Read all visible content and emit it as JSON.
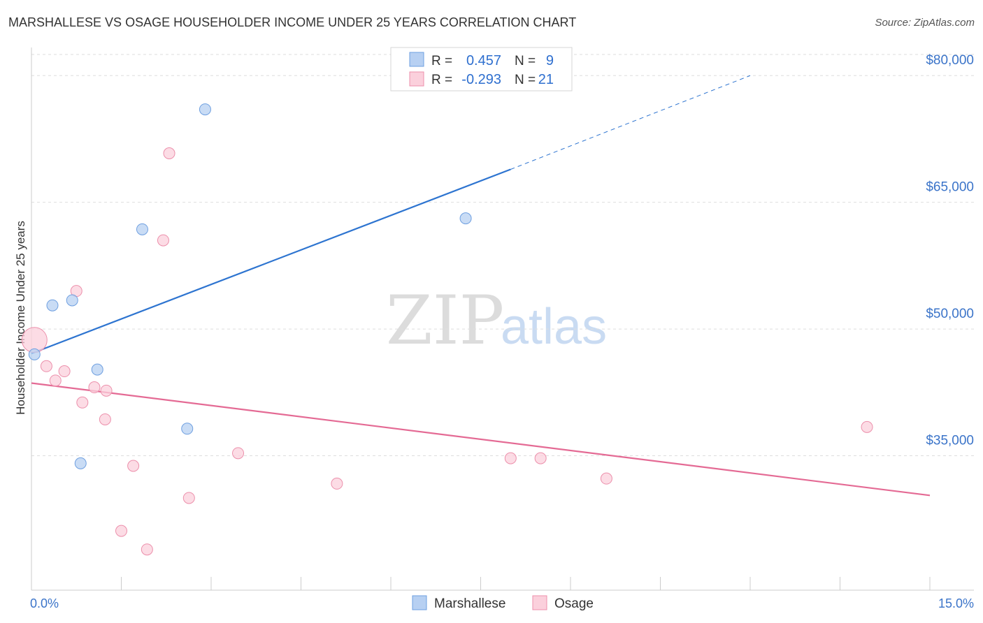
{
  "title": "MARSHALLESE VS OSAGE HOUSEHOLDER INCOME UNDER 25 YEARS CORRELATION CHART",
  "source": "Source: ZipAtlas.com",
  "watermark": {
    "zip": "ZIP",
    "atlas": "atlas"
  },
  "colors": {
    "marshallese_fill": "#b7d0f2",
    "marshallese_stroke": "#6e9fe0",
    "marshallese_line": "#2d74d0",
    "osage_fill": "#fbd0dc",
    "osage_stroke": "#ec8fab",
    "osage_line": "#e46a94",
    "grid": "#dedede",
    "tick_label": "#3b74c9"
  },
  "legend": {
    "rows": [
      {
        "r_label": "R =",
        "r_value": "0.457",
        "n_label": "N =",
        "n_value": "9"
      },
      {
        "r_label": "R =",
        "r_value": "-0.293",
        "n_label": "N =",
        "n_value": "21"
      }
    ]
  },
  "bottom_legend": [
    "Marshallese",
    "Osage"
  ],
  "chart_data": {
    "type": "scatter",
    "title": "MARSHALLESE VS OSAGE HOUSEHOLDER INCOME UNDER 25 YEARS CORRELATION CHART",
    "xlabel": "",
    "ylabel": "Householder Income Under 25 years",
    "xlim": [
      0,
      15
    ],
    "ylim": [
      19000,
      82500
    ],
    "x_tick_labels": [
      "0.0%",
      "15.0%"
    ],
    "y_ticks": [
      35000,
      50000,
      65000,
      80000
    ],
    "y_tick_labels": [
      "$35,000",
      "$50,000",
      "$65,000",
      "$80,000"
    ],
    "series": [
      {
        "name": "Marshallese",
        "r": 0.457,
        "n": 9,
        "points": [
          {
            "x": 0.05,
            "y": 47000
          },
          {
            "x": 0.35,
            "y": 52800
          },
          {
            "x": 0.68,
            "y": 53400
          },
          {
            "x": 1.1,
            "y": 45200
          },
          {
            "x": 0.82,
            "y": 34100
          },
          {
            "x": 2.6,
            "y": 38200
          },
          {
            "x": 1.85,
            "y": 61800
          },
          {
            "x": 2.9,
            "y": 76000
          },
          {
            "x": 7.25,
            "y": 63100
          }
        ],
        "trend": {
          "x0": 0,
          "y0": 47100,
          "x1": 8.0,
          "y1": 68900,
          "dash_to_x": 12.0,
          "dash_to_y": 80000
        }
      },
      {
        "name": "Osage",
        "r": -0.293,
        "n": 21,
        "points": [
          {
            "x": 0.05,
            "y": 48700
          },
          {
            "x": 0.25,
            "y": 45600
          },
          {
            "x": 0.4,
            "y": 43900
          },
          {
            "x": 0.55,
            "y": 45000
          },
          {
            "x": 0.75,
            "y": 54500
          },
          {
            "x": 0.85,
            "y": 41300
          },
          {
            "x": 1.05,
            "y": 43100
          },
          {
            "x": 1.25,
            "y": 42700
          },
          {
            "x": 1.23,
            "y": 39300
          },
          {
            "x": 1.7,
            "y": 33800
          },
          {
            "x": 2.3,
            "y": 70800
          },
          {
            "x": 2.2,
            "y": 60500
          },
          {
            "x": 1.5,
            "y": 26100
          },
          {
            "x": 1.93,
            "y": 23900
          },
          {
            "x": 2.63,
            "y": 30000
          },
          {
            "x": 3.45,
            "y": 35300
          },
          {
            "x": 5.1,
            "y": 31700
          },
          {
            "x": 8.0,
            "y": 34700
          },
          {
            "x": 8.5,
            "y": 34700
          },
          {
            "x": 9.6,
            "y": 32300
          },
          {
            "x": 13.95,
            "y": 38400
          }
        ],
        "trend": {
          "x0": 0,
          "y0": 43600,
          "x1": 15.0,
          "y1": 30300
        }
      }
    ]
  }
}
